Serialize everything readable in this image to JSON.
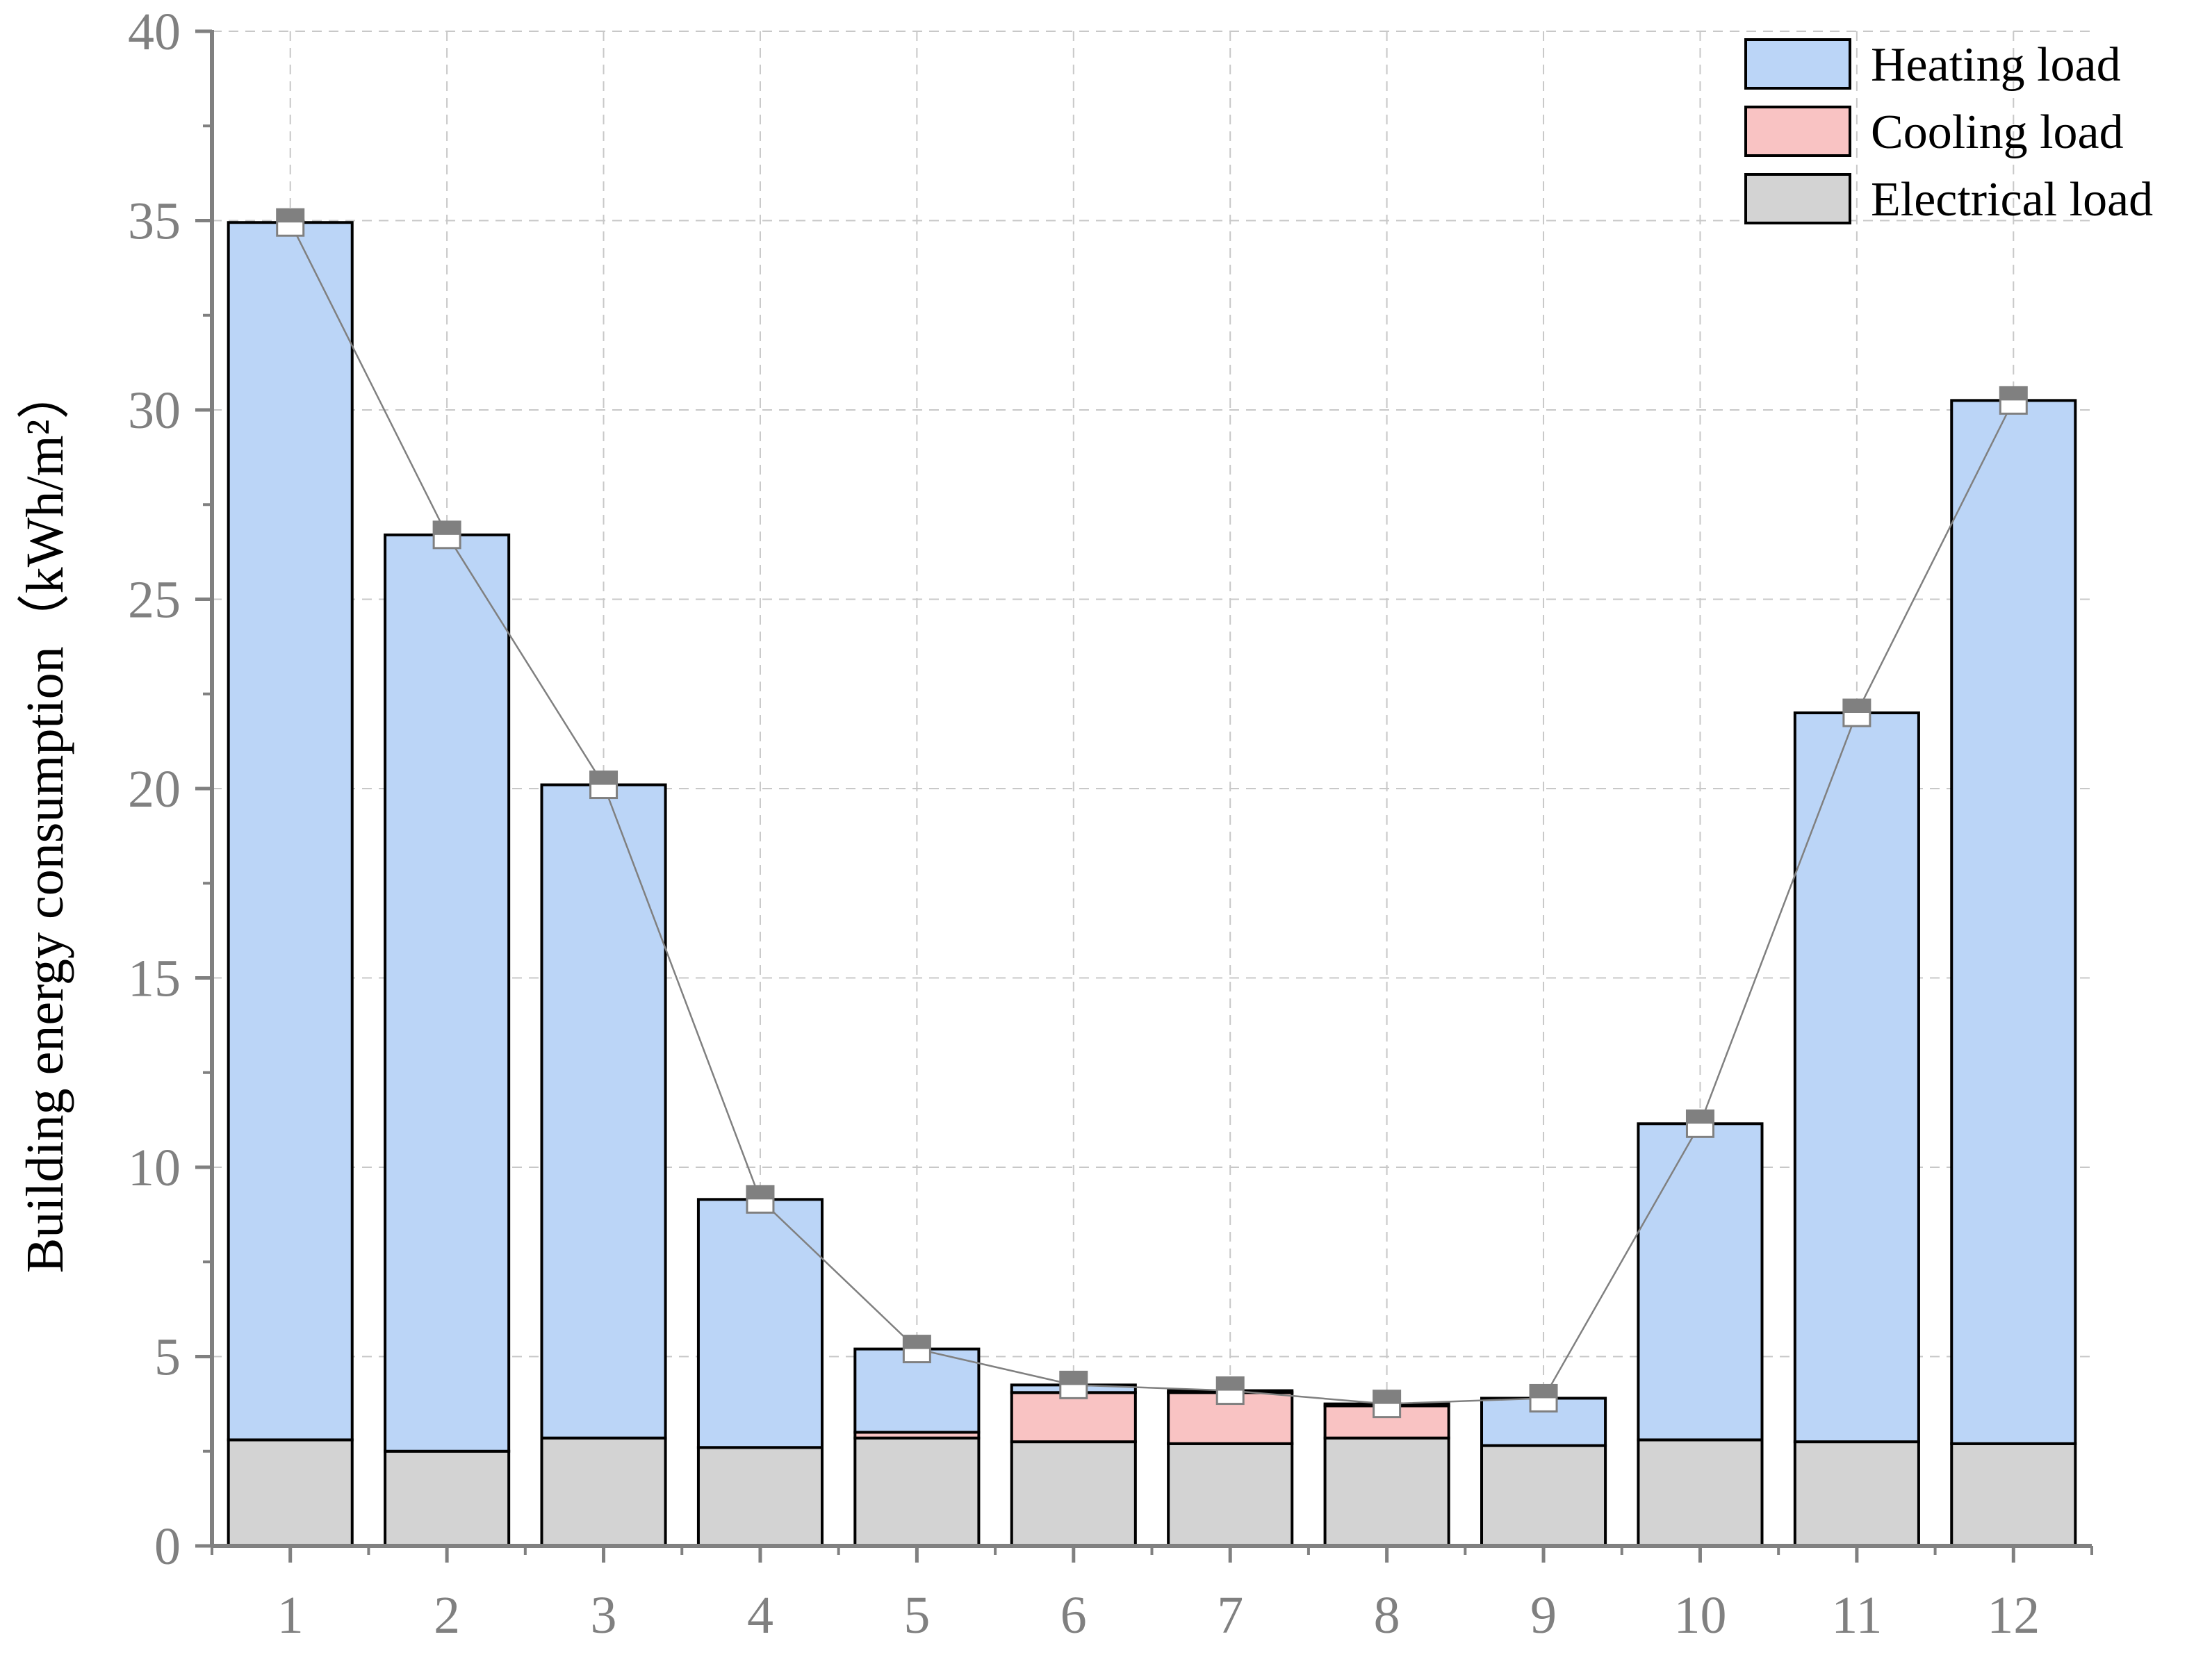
{
  "chart_data": {
    "type": "bar",
    "stacked": true,
    "categories": [
      "1",
      "2",
      "3",
      "4",
      "5",
      "6",
      "7",
      "8",
      "9",
      "10",
      "11",
      "12"
    ],
    "series": [
      {
        "name": "Electrical load",
        "color": "#d3d3d3",
        "values": [
          2.8,
          2.5,
          2.85,
          2.6,
          2.85,
          2.75,
          2.7,
          2.85,
          2.65,
          2.8,
          2.75,
          2.7
        ]
      },
      {
        "name": "Cooling load",
        "color": "#f9c3c3",
        "values": [
          0,
          0,
          0,
          0,
          0.15,
          1.3,
          1.35,
          0.85,
          0,
          0,
          0,
          0
        ]
      },
      {
        "name": "Heating load",
        "color": "#bbd5f7",
        "values": [
          32.15,
          24.2,
          17.25,
          6.55,
          2.2,
          0.2,
          0.05,
          0.05,
          1.25,
          8.35,
          19.25,
          27.55
        ]
      }
    ],
    "line": {
      "values": [
        34.95,
        26.7,
        20.1,
        9.15,
        5.2,
        4.25,
        4.1,
        3.75,
        3.9,
        11.15,
        22.0,
        30.25
      ],
      "color": "#808080",
      "marker": "square"
    },
    "ylabel": "Building energy consumption（kWh/m²）",
    "xlabel": "",
    "title": "",
    "ylim": [
      0,
      40
    ],
    "yticks": [
      "0",
      "5",
      "10",
      "15",
      "20",
      "25",
      "30",
      "35",
      "40"
    ],
    "grid": true,
    "legend_position": "top-right",
    "legend": [
      "Heating load",
      "Cooling load",
      "Electrical load"
    ]
  }
}
